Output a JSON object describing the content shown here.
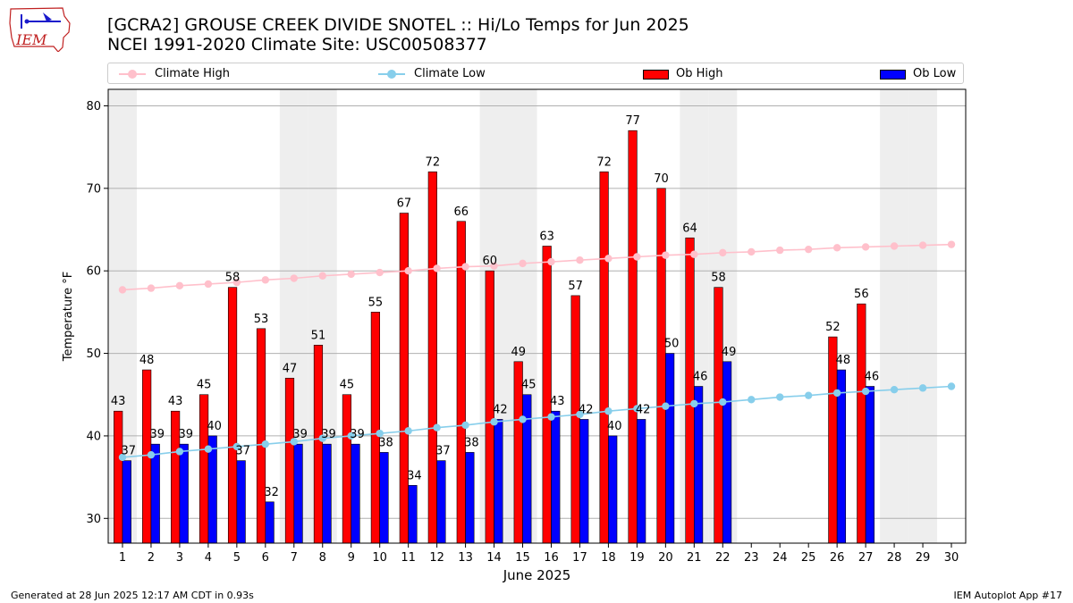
{
  "header": {
    "title_line1": "[GCRA2] GROUSE CREEK DIVIDE SNOTEL :: Hi/Lo Temps for Jun 2025",
    "title_line2": "NCEI 1991-2020 Climate Site: USC00508377",
    "logo_text": "IEM"
  },
  "legend": {
    "climate_high": "Climate High",
    "climate_low": "Climate Low",
    "ob_high": "Ob High",
    "ob_low": "Ob Low"
  },
  "colors": {
    "ob_high": "#ff0000",
    "ob_low": "#0000ff",
    "climate_high": "#ffc0cb",
    "climate_low": "#87ceeb",
    "weekend_shade": "#eeeeee",
    "grid": "#b0b0b0"
  },
  "footer": {
    "left": "Generated at 28 Jun 2025 12:17 AM CDT in 0.93s",
    "right": "IEM Autoplot App #17"
  },
  "chart_data": {
    "type": "bar",
    "xlabel": "June 2025",
    "ylabel": "Temperature °F",
    "ylim": [
      27,
      82
    ],
    "yticks": [
      30,
      40,
      50,
      60,
      70,
      80
    ],
    "grid": "horizontal",
    "legend_position": "top",
    "categories": [
      "1",
      "2",
      "3",
      "4",
      "5",
      "6",
      "7",
      "8",
      "9",
      "10",
      "11",
      "12",
      "13",
      "14",
      "15",
      "16",
      "17",
      "18",
      "19",
      "20",
      "21",
      "22",
      "23",
      "24",
      "25",
      "26",
      "27",
      "28",
      "29",
      "30"
    ],
    "weekend_shaded_days": [
      1,
      7,
      8,
      14,
      15,
      21,
      22,
      28,
      29
    ],
    "series": [
      {
        "name": "Ob High",
        "kind": "bar",
        "values": [
          43,
          48,
          43,
          45,
          58,
          53,
          47,
          51,
          45,
          55,
          67,
          72,
          66,
          60,
          49,
          63,
          57,
          72,
          77,
          70,
          64,
          58,
          null,
          null,
          null,
          52,
          56,
          null,
          null,
          null
        ]
      },
      {
        "name": "Ob Low",
        "kind": "bar",
        "values": [
          37,
          39,
          39,
          40,
          37,
          32,
          39,
          39,
          39,
          38,
          34,
          37,
          38,
          42,
          45,
          43,
          42,
          40,
          42,
          50,
          46,
          49,
          null,
          null,
          null,
          48,
          46,
          null,
          null,
          null
        ]
      },
      {
        "name": "Climate High",
        "kind": "line",
        "values": [
          57.7,
          57.9,
          58.2,
          58.4,
          58.6,
          58.9,
          59.1,
          59.4,
          59.6,
          59.8,
          60.0,
          60.3,
          60.5,
          60.6,
          60.9,
          61.1,
          61.3,
          61.5,
          61.7,
          61.9,
          62.0,
          62.2,
          62.3,
          62.5,
          62.6,
          62.8,
          62.9,
          63.0,
          63.1,
          63.2
        ]
      },
      {
        "name": "Climate Low",
        "kind": "line",
        "values": [
          37.4,
          37.7,
          38.1,
          38.4,
          38.7,
          39.0,
          39.3,
          39.7,
          40.0,
          40.3,
          40.6,
          41.0,
          41.3,
          41.7,
          42.0,
          42.3,
          42.6,
          43.0,
          43.3,
          43.6,
          43.9,
          44.1,
          44.4,
          44.7,
          44.9,
          45.2,
          45.4,
          45.6,
          45.8,
          46.0
        ]
      }
    ]
  }
}
